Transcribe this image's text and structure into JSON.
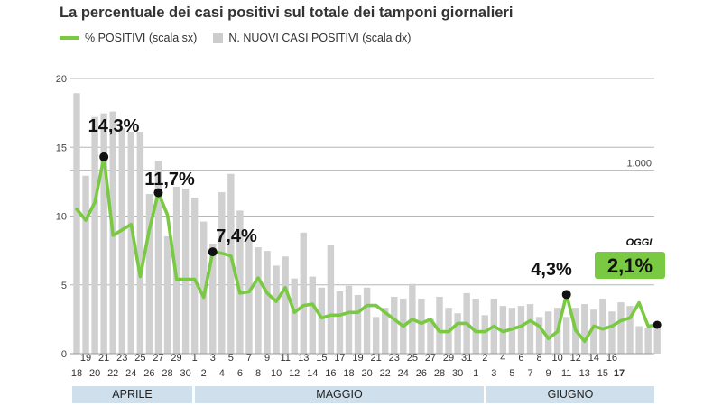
{
  "chart_data": {
    "type": "bar+line",
    "title": "La percentuale dei casi positivi sul totale dei tamponi giornalieri",
    "legend": [
      {
        "name": "% POSITIVI (scala sx)",
        "color": "#7ac943",
        "kind": "line"
      },
      {
        "name": "N. NUOVI CASI POSITIVI (scala dx)",
        "color": "#cccccc",
        "kind": "bar"
      }
    ],
    "left_axis": {
      "ticks": [
        "0",
        "5",
        "10",
        "15",
        "20"
      ],
      "ylim": [
        0,
        20
      ]
    },
    "right_axis": {
      "ticks": [
        "0",
        "1.000"
      ],
      "ylim": [
        0,
        1500
      ]
    },
    "x_labels_top": [
      "19",
      "21",
      "23",
      "25",
      "27",
      "29",
      "1",
      "3",
      "5",
      "7",
      "9",
      "11",
      "13",
      "15",
      "17",
      "19",
      "21",
      "23",
      "25",
      "27",
      "29",
      "31",
      "2",
      "4",
      "6",
      "8",
      "10",
      "12",
      "14",
      "16"
    ],
    "x_labels_bottom": [
      "18",
      "20",
      "22",
      "24",
      "26",
      "28",
      "30",
      "2",
      "4",
      "6",
      "8",
      "10",
      "12",
      "14",
      "16",
      "18",
      "20",
      "22",
      "24",
      "26",
      "28",
      "30",
      "1",
      "3",
      "5",
      "7",
      "9",
      "11",
      "13",
      "15",
      "17"
    ],
    "months": [
      "APRILE",
      "MAGGIO",
      "GIUGNO"
    ],
    "series": [
      {
        "name": "% POSITIVI (scala sx)",
        "values": [
          10.5,
          9.7,
          11.0,
          14.3,
          8.6,
          9.0,
          9.4,
          5.6,
          9.0,
          11.7,
          10.1,
          5.4,
          5.4,
          5.4,
          4.1,
          7.4,
          7.3,
          7.1,
          4.4,
          4.5,
          5.5,
          4.4,
          3.8,
          4.8,
          3.0,
          3.5,
          3.6,
          2.6,
          2.8,
          2.8,
          3.0,
          3.0,
          3.5,
          3.5,
          3.0,
          2.5,
          2.0,
          2.5,
          2.2,
          2.5,
          1.6,
          1.6,
          2.2,
          2.2,
          1.6,
          1.6,
          2.0,
          1.6,
          1.8,
          2.0,
          2.4,
          2.0,
          1.1,
          1.6,
          4.3,
          1.7,
          0.9,
          2.0,
          1.8,
          2.0,
          2.4,
          2.6,
          3.7,
          2.0,
          2.1
        ]
      },
      {
        "name": "N. NUOVI CASI POSITIVI (scala dx)",
        "values": [
          1420,
          970,
          1290,
          1310,
          1320,
          1230,
          1210,
          1210,
          870,
          1050,
          640,
          910,
          900,
          850,
          720,
          600,
          880,
          980,
          780,
          640,
          580,
          560,
          480,
          530,
          410,
          660,
          420,
          360,
          590,
          340,
          370,
          320,
          360,
          200,
          250,
          310,
          300,
          380,
          300,
          190,
          310,
          250,
          220,
          330,
          300,
          210,
          300,
          260,
          250,
          260,
          270,
          200,
          230,
          250,
          200,
          250,
          270,
          240,
          300,
          230,
          280,
          260,
          150,
          140,
          140
        ]
      }
    ],
    "annotations": [
      "14,3%",
      "11,7%",
      "7,4%",
      "4,3%",
      "2,1%",
      "OGGI"
    ]
  }
}
